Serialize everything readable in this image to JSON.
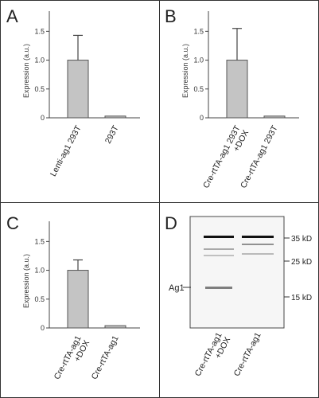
{
  "colors": {
    "bar": "#c4c4c4",
    "bar_stroke": "#555555",
    "axis": "#444444",
    "band": "#111111"
  },
  "chart_data": [
    {
      "type": "bar",
      "panel": "A",
      "ylabel": "Expression (a.u.)",
      "yticks": [
        0,
        0.5,
        1.0,
        1.5
      ],
      "ytick_labels": [
        "0",
        "0.5",
        "1.0",
        "1.5"
      ],
      "ylim": [
        0,
        1.85
      ],
      "categories": [
        "Lenti-ag1 293T",
        "293T"
      ],
      "values": [
        1.0,
        0.03
      ],
      "errors": [
        0.43,
        0.0
      ]
    },
    {
      "type": "bar",
      "panel": "B",
      "ylabel": "Expression (a.u.)",
      "yticks": [
        0,
        0.5,
        1.0,
        1.5
      ],
      "ytick_labels": [
        "0",
        "0.5",
        "1.0",
        "1.5"
      ],
      "ylim": [
        0,
        1.85
      ],
      "categories": [
        [
          "Cre-rtTA-ag1 293T",
          "+DOX"
        ],
        [
          "Cre-rtTA-ag1 293T"
        ]
      ],
      "values": [
        1.0,
        0.03
      ],
      "errors": [
        0.55,
        0.0
      ]
    },
    {
      "type": "bar",
      "panel": "C",
      "ylabel": "Expression (a.u.)",
      "yticks": [
        0,
        0.5,
        1.0,
        1.5
      ],
      "ytick_labels": [
        "0",
        "0.5",
        "1.0",
        "1.5"
      ],
      "ylim": [
        0,
        1.85
      ],
      "categories": [
        [
          "Cre-rtTA-ag1",
          "+DOX"
        ],
        [
          "Cre-rtTA-ag1"
        ]
      ],
      "values": [
        1.0,
        0.04
      ],
      "errors": [
        0.18,
        0.0
      ]
    }
  ],
  "blot": {
    "panel": "D",
    "band_label": "Ag1",
    "markers": [
      "35 kD",
      "25 kD",
      "15 kD"
    ],
    "lanes": [
      [
        "Cre-rtTA-ag1",
        "+DOX"
      ],
      [
        "Cre-rtTA-ag1"
      ]
    ]
  }
}
